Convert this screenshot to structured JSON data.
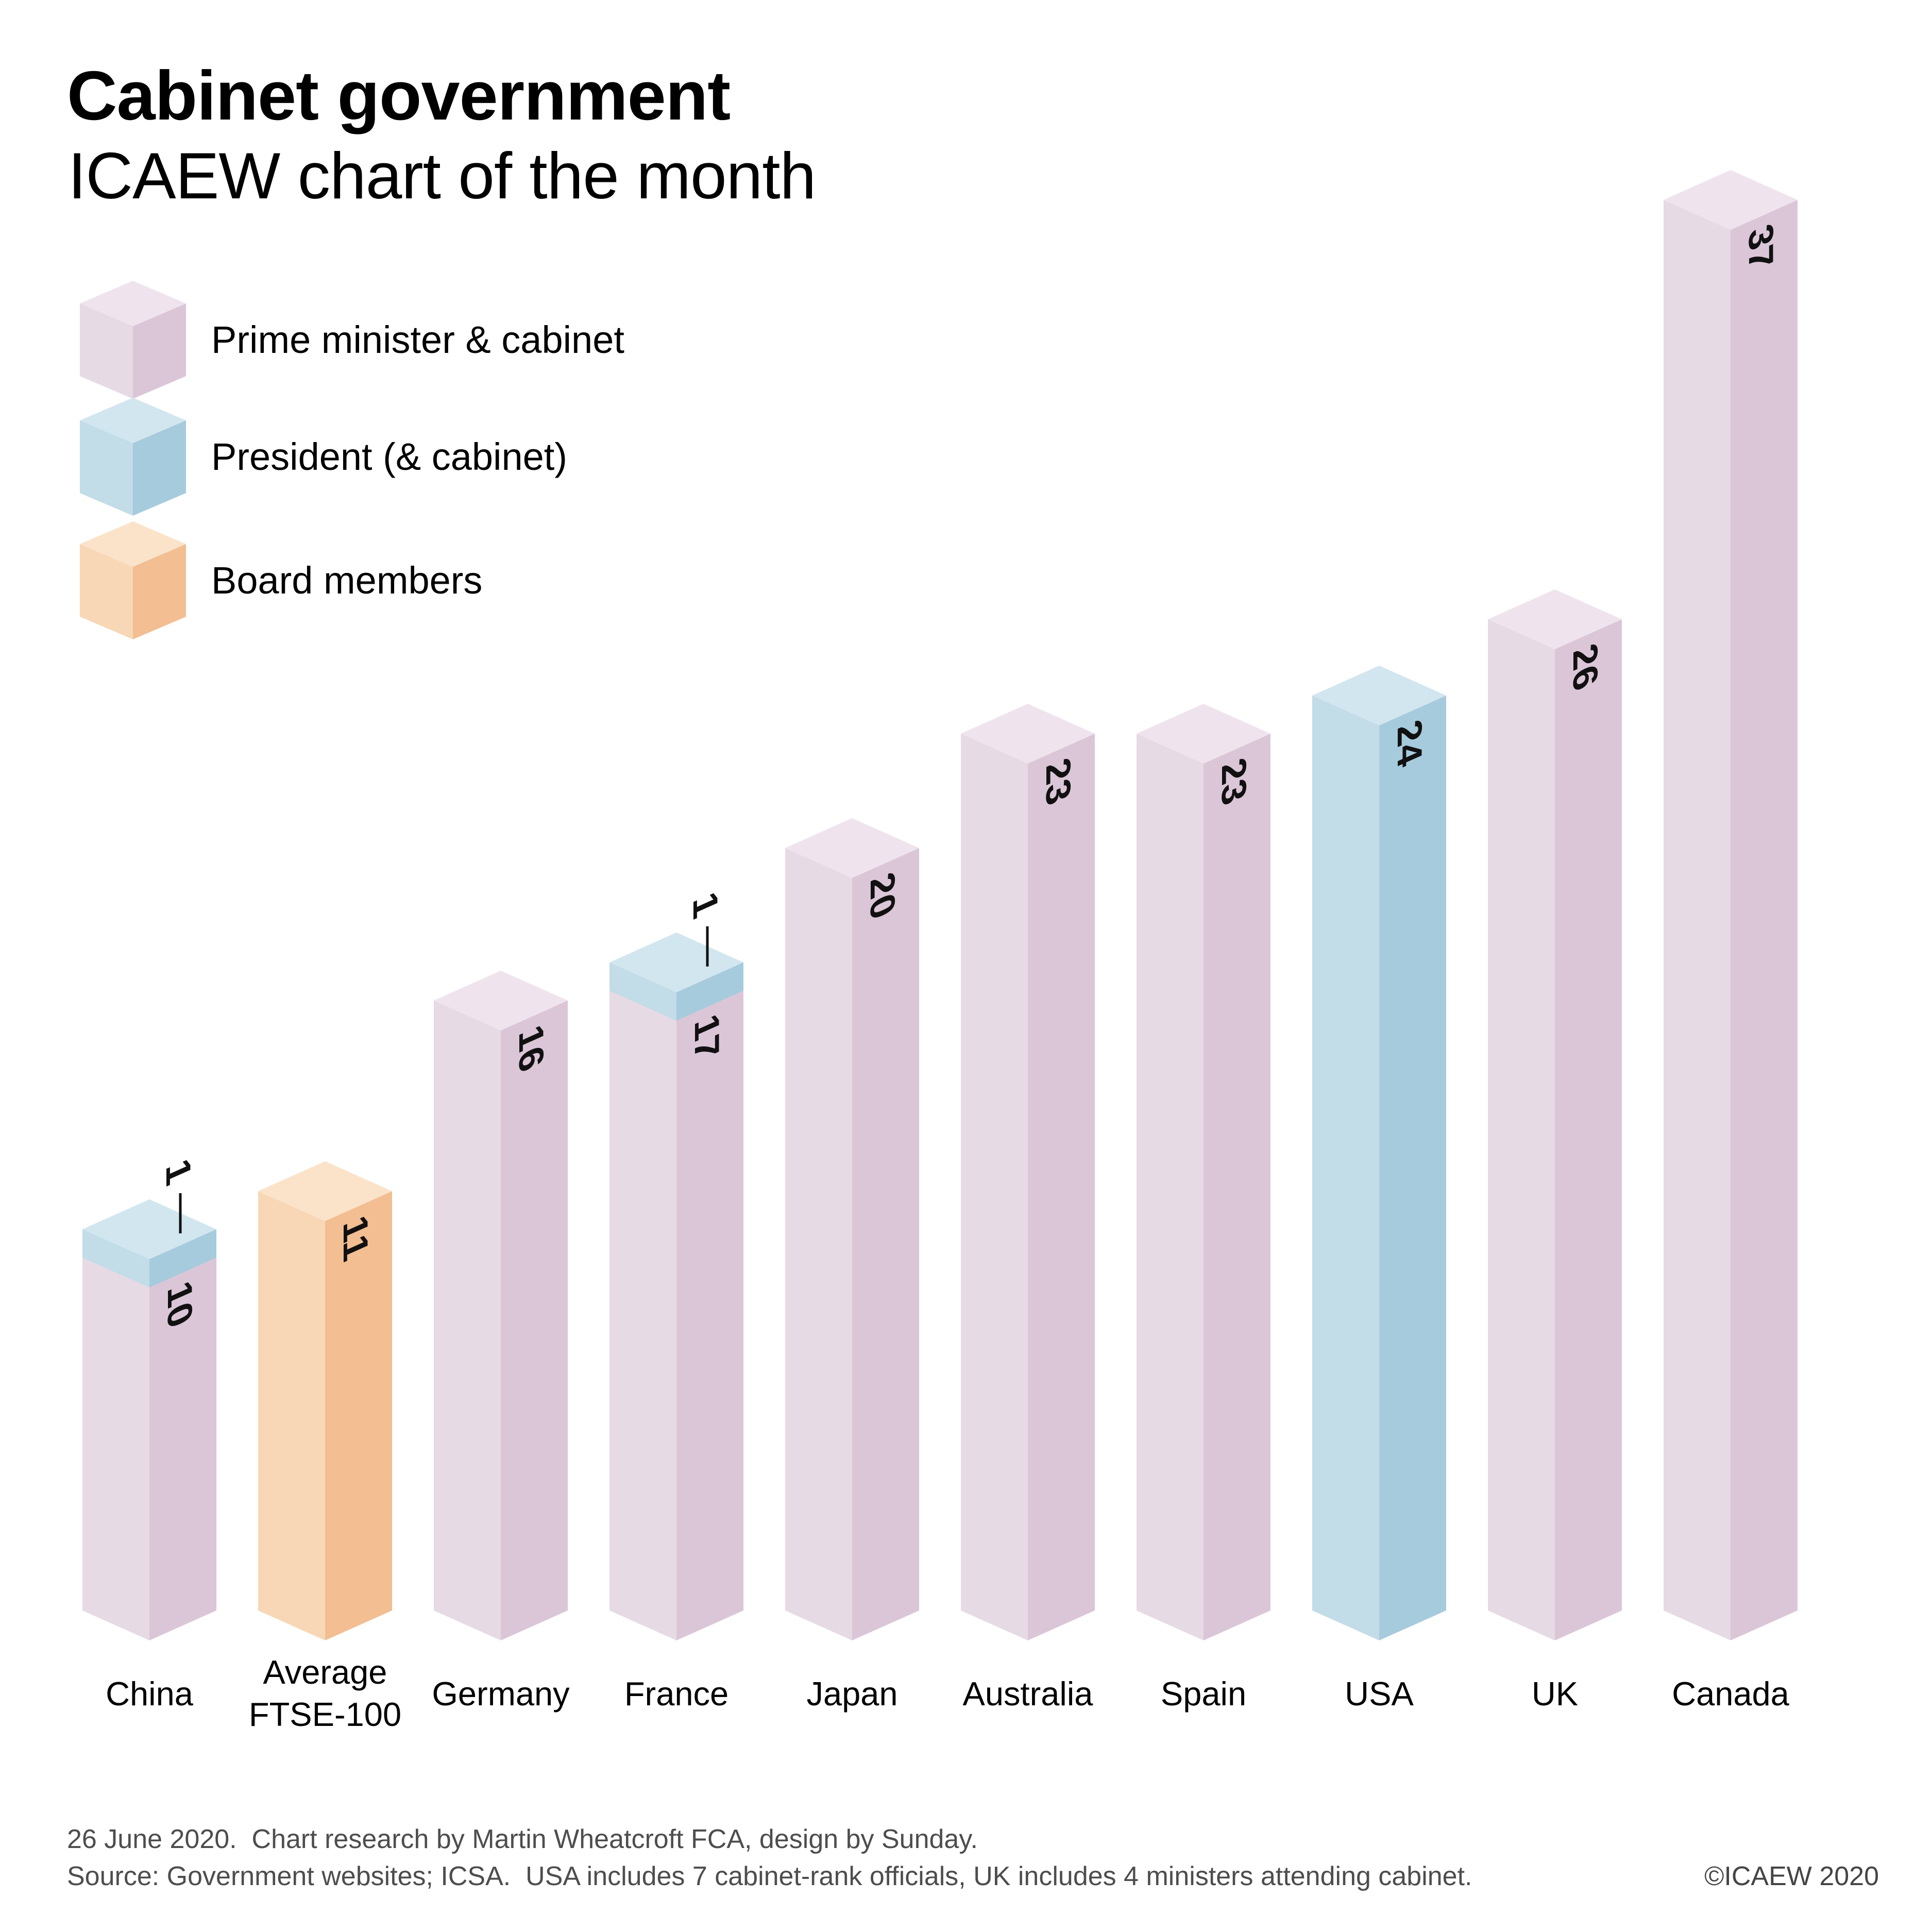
{
  "title": "Cabinet government",
  "subtitle": "ICAEW chart of the month",
  "legend": {
    "items": [
      {
        "id": "pm_cabinet",
        "label": "Prime minister & cabinet"
      },
      {
        "id": "president",
        "label": "President (& cabinet)"
      },
      {
        "id": "board",
        "label": "Board members"
      }
    ]
  },
  "palette": {
    "pm_cabinet": {
      "top": "#EFE4EE",
      "left": "#E6DAE4",
      "right": "#DBC6D7"
    },
    "president": {
      "top": "#D2E6EF",
      "left": "#C2DCE8",
      "right": "#A6CBDC"
    },
    "board": {
      "top": "#FBE3CA",
      "left": "#F8D7B6",
      "right": "#F2BE92"
    }
  },
  "chart_data": {
    "type": "bar",
    "projection": "isometric-3d",
    "title": "Cabinet government",
    "subtitle": "ICAEW chart of the month",
    "legend_position": "top-left",
    "grid": false,
    "categories": [
      "China",
      "Average FTSE-100",
      "Germany",
      "France",
      "Japan",
      "Australia",
      "Spain",
      "USA",
      "UK",
      "Canada"
    ],
    "values": [
      10,
      11,
      16,
      17,
      20,
      23,
      23,
      24,
      26,
      37
    ],
    "series": [
      {
        "name": "Prime minister & cabinet",
        "values": [
          10,
          null,
          16,
          17,
          20,
          23,
          23,
          null,
          26,
          37
        ]
      },
      {
        "name": "President (& cabinet)",
        "values": [
          1,
          null,
          null,
          1,
          null,
          null,
          null,
          24,
          null,
          null
        ]
      },
      {
        "name": "Board members",
        "values": [
          null,
          11,
          null,
          null,
          null,
          null,
          null,
          null,
          null,
          null
        ]
      }
    ],
    "bars": [
      {
        "category_lines": [
          "China"
        ],
        "value": 10,
        "value_label": "10",
        "palette": "pm_cabinet",
        "cap_value": 1,
        "cap_label": "1",
        "cap_palette": "president"
      },
      {
        "category_lines": [
          "Average",
          "FTSE-100"
        ],
        "value": 11,
        "value_label": "11",
        "palette": "board"
      },
      {
        "category_lines": [
          "Germany"
        ],
        "value": 16,
        "value_label": "16",
        "palette": "pm_cabinet"
      },
      {
        "category_lines": [
          "France"
        ],
        "value": 17,
        "value_label": "17",
        "palette": "pm_cabinet",
        "cap_value": 1,
        "cap_label": "1",
        "cap_palette": "president"
      },
      {
        "category_lines": [
          "Japan"
        ],
        "value": 20,
        "value_label": "20",
        "palette": "pm_cabinet"
      },
      {
        "category_lines": [
          "Australia"
        ],
        "value": 23,
        "value_label": "23",
        "palette": "pm_cabinet"
      },
      {
        "category_lines": [
          "Spain"
        ],
        "value": 23,
        "value_label": "23",
        "palette": "pm_cabinet"
      },
      {
        "category_lines": [
          "USA"
        ],
        "value": 24,
        "value_label": "24",
        "palette": "president"
      },
      {
        "category_lines": [
          "UK"
        ],
        "value": 26,
        "value_label": "26",
        "palette": "pm_cabinet"
      },
      {
        "category_lines": [
          "Canada"
        ],
        "value": 37,
        "value_label": "37",
        "palette": "pm_cabinet"
      }
    ]
  },
  "footer": {
    "line1": "26 June 2020.  Chart research by Martin Wheatcroft FCA, design by Sunday.",
    "line2": "Source: Government websites; ICSA.  USA includes 7 cabinet-rank officials, UK includes 4 ministers attending cabinet.",
    "copyright": "©ICAEW 2020"
  }
}
